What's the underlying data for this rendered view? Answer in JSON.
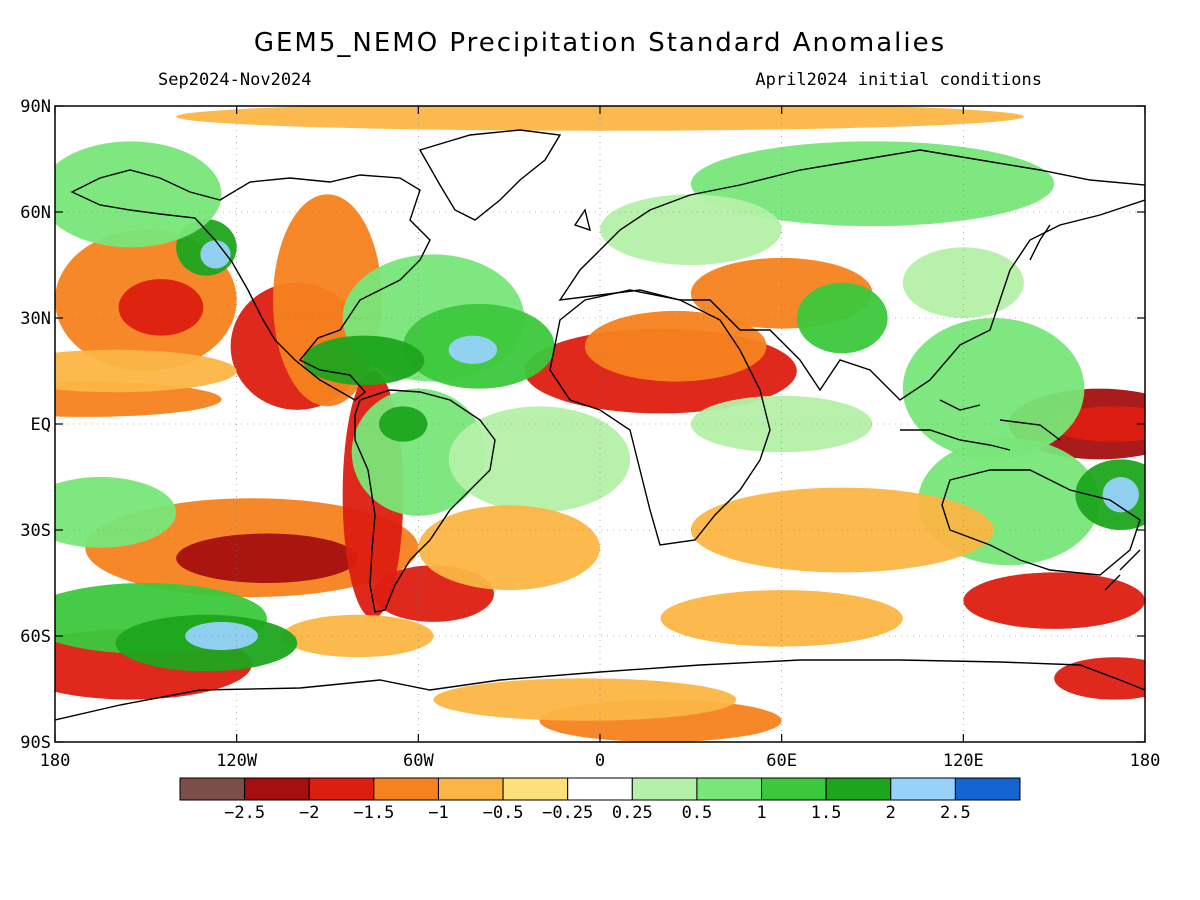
{
  "title": "GEM5_NEMO Precipitation Standard Anomalies",
  "subtitle_left": "Sep2024-Nov2024",
  "subtitle_right": "April2024 initial conditions",
  "lat_labels": [
    "90N",
    "60N",
    "30N",
    "EQ",
    "30S",
    "60S",
    "90S"
  ],
  "lat_values": [
    90,
    60,
    30,
    0,
    -30,
    -60,
    -90
  ],
  "lon_labels": [
    "180",
    "120W",
    "60W",
    "0",
    "60E",
    "120E",
    "180"
  ],
  "lon_values": [
    -180,
    -120,
    -60,
    0,
    60,
    120,
    180
  ],
  "legend": {
    "colors": [
      "#7b4f48",
      "#a50f0f",
      "#dc1e10",
      "#f5821e",
      "#fbb544",
      "#fde07a",
      "#ffffff",
      "#b4f0a8",
      "#78e678",
      "#3cc83c",
      "#1ea51e",
      "#96d2fa",
      "#1464d2"
    ],
    "labels": [
      "−2.5",
      "−2",
      "−1.5",
      "−1",
      "−0.5",
      "−0.25",
      "0.25",
      "0.5",
      "1",
      "1.5",
      "2",
      "2.5"
    ]
  },
  "anomaly_blobs": [
    {
      "lon": -150,
      "lat": 35,
      "w": 30,
      "h": 20,
      "cls": 3
    },
    {
      "lon": -145,
      "lat": 33,
      "w": 14,
      "h": 8,
      "cls": 2
    },
    {
      "lon": -100,
      "lat": 22,
      "w": 22,
      "h": 18,
      "cls": 2
    },
    {
      "lon": -90,
      "lat": 35,
      "w": 18,
      "h": 30,
      "cls": 3
    },
    {
      "lon": -170,
      "lat": 7,
      "w": 45,
      "h": 5,
      "cls": 3
    },
    {
      "lon": -115,
      "lat": -35,
      "w": 55,
      "h": 14,
      "cls": 3
    },
    {
      "lon": -110,
      "lat": -38,
      "w": 30,
      "h": 7,
      "cls": 1
    },
    {
      "lon": -75,
      "lat": -20,
      "w": 10,
      "h": 35,
      "cls": 2
    },
    {
      "lon": -55,
      "lat": -48,
      "w": 20,
      "h": 8,
      "cls": 2
    },
    {
      "lon": -155,
      "lat": -68,
      "w": 40,
      "h": 10,
      "cls": 2
    },
    {
      "lon": 20,
      "lat": 15,
      "w": 45,
      "h": 12,
      "cls": 2
    },
    {
      "lon": 25,
      "lat": 22,
      "w": 30,
      "h": 10,
      "cls": 3
    },
    {
      "lon": 165,
      "lat": 0,
      "w": 30,
      "h": 10,
      "cls": 1
    },
    {
      "lon": 170,
      "lat": 0,
      "w": 22,
      "h": 5,
      "cls": 2
    },
    {
      "lon": 150,
      "lat": -50,
      "w": 30,
      "h": 8,
      "cls": 2
    },
    {
      "lon": 170,
      "lat": -72,
      "w": 20,
      "h": 6,
      "cls": 2
    },
    {
      "lon": 20,
      "lat": -84,
      "w": 40,
      "h": 6,
      "cls": 3
    },
    {
      "lon": -5,
      "lat": -78,
      "w": 50,
      "h": 6,
      "cls": 4
    },
    {
      "lon": 0,
      "lat": 87,
      "w": 140,
      "h": 4,
      "cls": 4
    },
    {
      "lon": 60,
      "lat": 37,
      "w": 30,
      "h": 10,
      "cls": 3
    },
    {
      "lon": -80,
      "lat": -60,
      "w": 25,
      "h": 6,
      "cls": 4
    },
    {
      "lon": 60,
      "lat": -55,
      "w": 40,
      "h": 8,
      "cls": 4
    },
    {
      "lon": -150,
      "lat": -55,
      "w": 40,
      "h": 10,
      "cls": 9
    },
    {
      "lon": -130,
      "lat": -62,
      "w": 30,
      "h": 8,
      "cls": 10
    },
    {
      "lon": -125,
      "lat": -60,
      "w": 12,
      "h": 4,
      "cls": 11
    },
    {
      "lon": -55,
      "lat": 30,
      "w": 30,
      "h": 18,
      "cls": 8
    },
    {
      "lon": -40,
      "lat": 22,
      "w": 25,
      "h": 12,
      "cls": 9
    },
    {
      "lon": -42,
      "lat": 21,
      "w": 8,
      "h": 4,
      "cls": 11
    },
    {
      "lon": -78,
      "lat": 18,
      "w": 20,
      "h": 7,
      "cls": 10
    },
    {
      "lon": -60,
      "lat": -8,
      "w": 22,
      "h": 18,
      "cls": 8
    },
    {
      "lon": -65,
      "lat": 0,
      "w": 8,
      "h": 5,
      "cls": 10
    },
    {
      "lon": -130,
      "lat": 50,
      "w": 10,
      "h": 8,
      "cls": 10
    },
    {
      "lon": -127,
      "lat": 48,
      "w": 5,
      "h": 4,
      "cls": 11
    },
    {
      "lon": 80,
      "lat": 30,
      "w": 15,
      "h": 10,
      "cls": 9
    },
    {
      "lon": 130,
      "lat": 10,
      "w": 30,
      "h": 20,
      "cls": 8
    },
    {
      "lon": 135,
      "lat": -22,
      "w": 30,
      "h": 18,
      "cls": 8
    },
    {
      "lon": 172,
      "lat": -20,
      "w": 15,
      "h": 10,
      "cls": 10
    },
    {
      "lon": 172,
      "lat": -20,
      "w": 6,
      "h": 5,
      "cls": 11
    },
    {
      "lon": 90,
      "lat": 68,
      "w": 60,
      "h": 12,
      "cls": 8
    },
    {
      "lon": -155,
      "lat": 65,
      "w": 30,
      "h": 15,
      "cls": 8
    },
    {
      "lon": -165,
      "lat": -25,
      "w": 25,
      "h": 10,
      "cls": 8
    },
    {
      "lon": -20,
      "lat": -10,
      "w": 30,
      "h": 15,
      "cls": 7
    },
    {
      "lon": 60,
      "lat": 0,
      "w": 30,
      "h": 8,
      "cls": 7
    },
    {
      "lon": 30,
      "lat": 55,
      "w": 30,
      "h": 10,
      "cls": 7
    },
    {
      "lon": -160,
      "lat": 15,
      "w": 40,
      "h": 6,
      "cls": 4
    },
    {
      "lon": 80,
      "lat": -30,
      "w": 50,
      "h": 12,
      "cls": 4
    },
    {
      "lon": -30,
      "lat": -35,
      "w": 30,
      "h": 12,
      "cls": 4
    },
    {
      "lon": 120,
      "lat": 40,
      "w": 20,
      "h": 10,
      "cls": 7
    }
  ]
}
